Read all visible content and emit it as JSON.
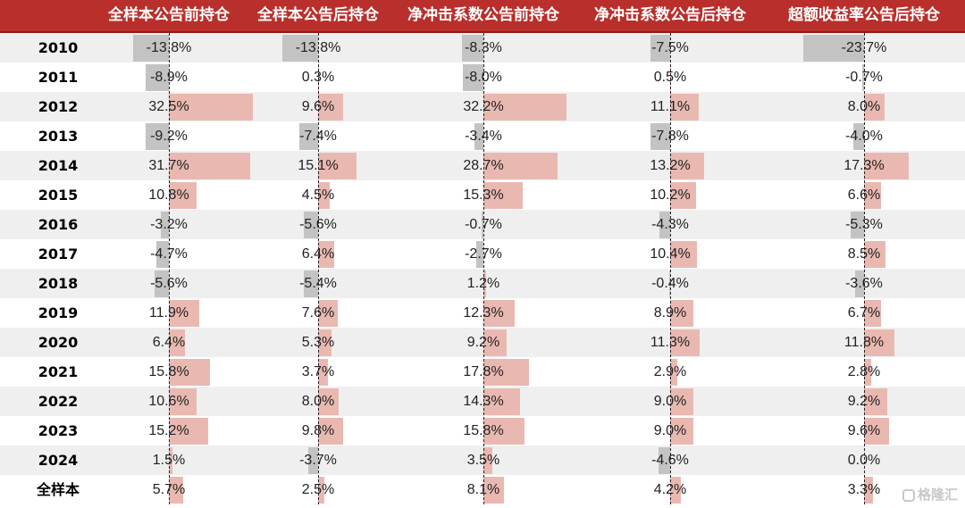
{
  "chart_data": {
    "type": "table",
    "columns": [
      "全样本公告前持仓",
      "全样本公告后持仓",
      "净冲击系数公告前持仓",
      "净冲击系数公告后持仓",
      "超额收益率公告后持仓"
    ],
    "rows": [
      "2010",
      "2011",
      "2012",
      "2013",
      "2014",
      "2015",
      "2016",
      "2017",
      "2018",
      "2019",
      "2020",
      "2021",
      "2022",
      "2023",
      "2024",
      "全样本"
    ],
    "values": [
      [
        -13.8,
        -13.8,
        -8.3,
        -7.5,
        -23.7
      ],
      [
        -8.9,
        0.3,
        -8.0,
        0.5,
        -0.7
      ],
      [
        32.5,
        9.6,
        32.2,
        11.1,
        8.0
      ],
      [
        -9.2,
        -7.4,
        -3.4,
        -7.8,
        -4.0
      ],
      [
        31.7,
        15.1,
        28.7,
        13.2,
        17.3
      ],
      [
        10.8,
        4.5,
        15.3,
        10.2,
        6.6
      ],
      [
        -3.2,
        -5.6,
        -0.7,
        -4.3,
        -5.3
      ],
      [
        -4.7,
        6.4,
        -2.7,
        10.4,
        8.5
      ],
      [
        -5.6,
        -5.4,
        1.2,
        -0.4,
        -3.6
      ],
      [
        11.9,
        7.6,
        12.3,
        8.9,
        6.7
      ],
      [
        6.4,
        5.3,
        9.2,
        11.3,
        11.8
      ],
      [
        15.8,
        3.7,
        17.8,
        2.9,
        2.8
      ],
      [
        10.6,
        8.0,
        14.3,
        9.0,
        9.2
      ],
      [
        15.2,
        9.8,
        15.8,
        9.0,
        9.6
      ],
      [
        1.5,
        -3.7,
        3.5,
        -4.6,
        0.0
      ],
      [
        5.7,
        2.5,
        8.1,
        4.2,
        3.3
      ]
    ],
    "value_suffix": "%"
  },
  "watermark": "格隆汇",
  "colors": {
    "header_bg": "#b92f2b",
    "positive_bar": "#e9b9b1",
    "negative_bar": "#c3c3c3",
    "stripe": "#efefef"
  }
}
